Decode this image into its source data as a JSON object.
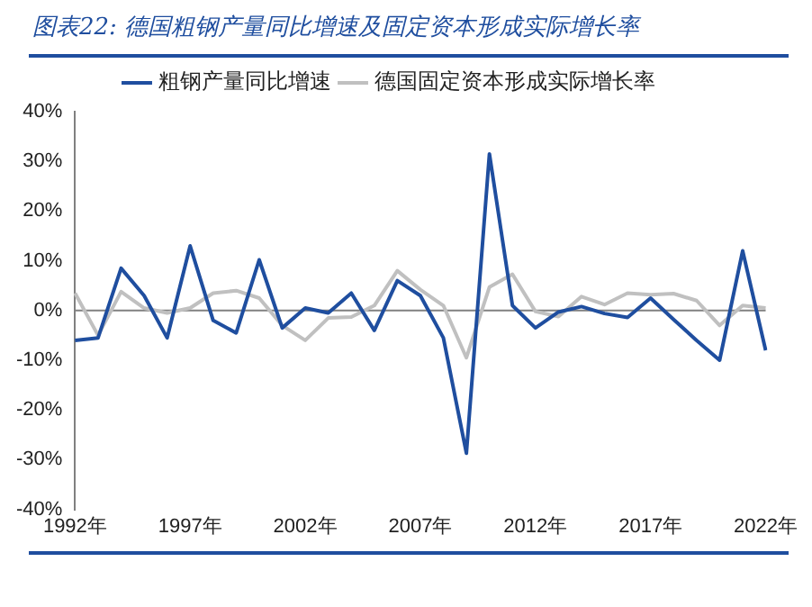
{
  "chart_data": {
    "type": "line",
    "title": "图表22: 德国粗钢产量同比增速及固定资本形成实际增长率",
    "categories": [
      "1992年",
      null,
      null,
      null,
      null,
      "1997年",
      null,
      null,
      null,
      null,
      "2002年",
      null,
      null,
      null,
      null,
      "2007年",
      null,
      null,
      null,
      null,
      "2012年",
      null,
      null,
      null,
      null,
      "2017年",
      null,
      null,
      null,
      null,
      "2022年"
    ],
    "series": [
      {
        "name": "粗钢产量同比增速",
        "color": "#1f4e9f",
        "values": [
          -6,
          -5.5,
          8.5,
          3,
          -5.5,
          13,
          -2,
          -4.5,
          10.2,
          -3.5,
          0.5,
          -0.5,
          3.5,
          -4,
          6,
          3,
          -5.5,
          -28.7,
          31.5,
          1,
          -3.5,
          -0.3,
          0.8,
          -0.6,
          -1.4,
          2.5,
          -1.8,
          -6,
          -10,
          12,
          -8
        ]
      },
      {
        "name": "德国固定资本形成实际增长率",
        "color": "#c0c0c0",
        "values": [
          3.5,
          -5,
          3.8,
          0.5,
          -0.5,
          0.5,
          3.5,
          4,
          2.5,
          -3,
          -6,
          -1.5,
          -1.3,
          1,
          8,
          4.2,
          1,
          -9.5,
          4.7,
          7.3,
          -0.2,
          -1.2,
          2.8,
          1.2,
          3.5,
          3.2,
          3.4,
          2,
          -3,
          1,
          0.5
        ]
      }
    ],
    "ylim": [
      -40,
      40
    ],
    "yticks": [
      {
        "value": -40,
        "label": "-40%"
      },
      {
        "value": -30,
        "label": "-30%"
      },
      {
        "value": -20,
        "label": "-20%"
      },
      {
        "value": -10,
        "label": "-10%"
      },
      {
        "value": 0,
        "label": "0%"
      },
      {
        "value": 10,
        "label": "10%"
      },
      {
        "value": 20,
        "label": "20%"
      },
      {
        "value": 30,
        "label": "30%"
      },
      {
        "value": 40,
        "label": "40%"
      }
    ],
    "ref_lines": [
      {
        "axis": "y",
        "value": 0,
        "color": "#808080"
      }
    ],
    "legend": "top",
    "marker": "none",
    "grid": false
  }
}
